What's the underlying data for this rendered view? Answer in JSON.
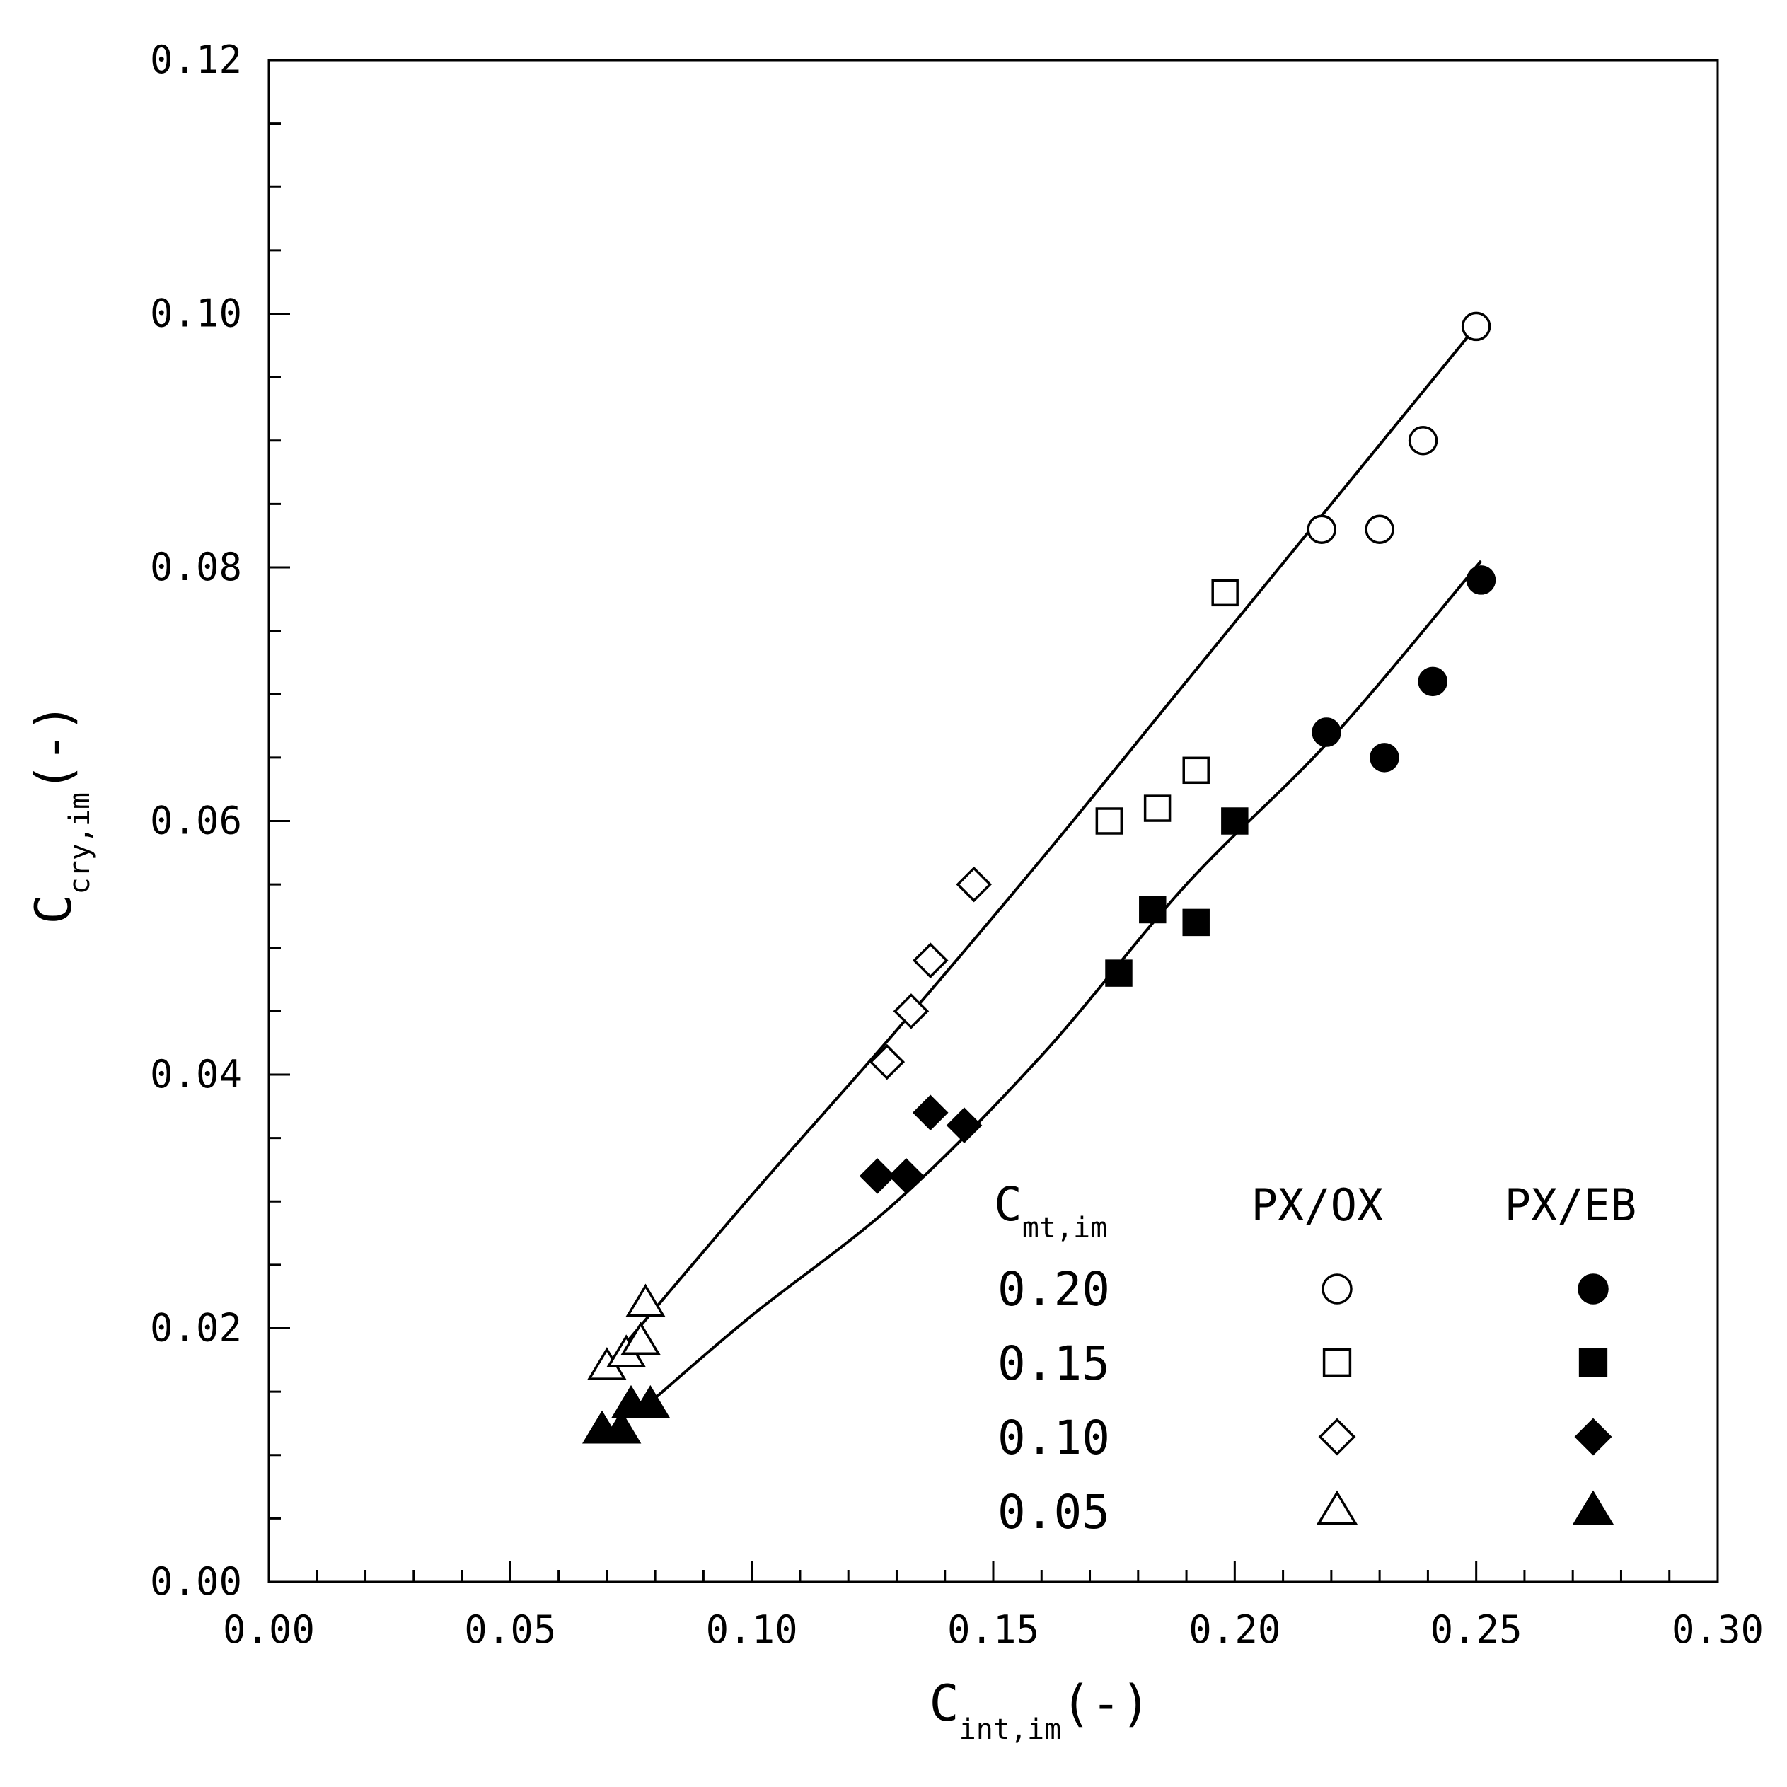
{
  "chart_data": {
    "type": "scatter",
    "xlabel": {
      "main": "C",
      "sub": "int,im",
      "suffix": "(-)"
    },
    "ylabel": {
      "main": "C",
      "sub": "cry,im",
      "suffix": "(-)"
    },
    "xlim": [
      0.0,
      0.3
    ],
    "ylim": [
      0.0,
      0.12
    ],
    "x_ticks": [
      "0.00",
      "0.05",
      "0.10",
      "0.15",
      "0.20",
      "0.25",
      "0.30"
    ],
    "y_ticks": [
      "0.00",
      "0.02",
      "0.04",
      "0.06",
      "0.08",
      "0.10",
      "0.12"
    ],
    "grid": false,
    "legend": {
      "placement": "bottom-right",
      "header": {
        "main": "C",
        "sub": "mt,im",
        "col1": "PX/OX",
        "col2": "PX/EB"
      },
      "rows": [
        {
          "label": "0.20",
          "marker": "circle"
        },
        {
          "label": "0.15",
          "marker": "square"
        },
        {
          "label": "0.10",
          "marker": "diamond"
        },
        {
          "label": "0.05",
          "marker": "triangle"
        }
      ]
    },
    "series": [
      {
        "name": "PX/OX 0.20",
        "system": "PX/OX",
        "cmt": "0.20",
        "marker": "circle",
        "filled": false,
        "points": [
          [
            0.218,
            0.083
          ],
          [
            0.23,
            0.083
          ],
          [
            0.239,
            0.09
          ],
          [
            0.25,
            0.099
          ]
        ]
      },
      {
        "name": "PX/OX 0.15",
        "system": "PX/OX",
        "cmt": "0.15",
        "marker": "square",
        "filled": false,
        "points": [
          [
            0.174,
            0.06
          ],
          [
            0.184,
            0.061
          ],
          [
            0.192,
            0.064
          ],
          [
            0.198,
            0.078
          ]
        ]
      },
      {
        "name": "PX/OX 0.10",
        "system": "PX/OX",
        "cmt": "0.10",
        "marker": "diamond",
        "filled": false,
        "points": [
          [
            0.128,
            0.041
          ],
          [
            0.133,
            0.045
          ],
          [
            0.137,
            0.049
          ],
          [
            0.146,
            0.055
          ]
        ]
      },
      {
        "name": "PX/OX 0.05",
        "system": "PX/OX",
        "cmt": "0.05",
        "marker": "triangle",
        "filled": false,
        "points": [
          [
            0.07,
            0.017
          ],
          [
            0.074,
            0.018
          ],
          [
            0.077,
            0.019
          ],
          [
            0.078,
            0.022
          ]
        ]
      },
      {
        "name": "PX/EB 0.20",
        "system": "PX/EB",
        "cmt": "0.20",
        "marker": "circle",
        "filled": true,
        "points": [
          [
            0.219,
            0.067
          ],
          [
            0.231,
            0.065
          ],
          [
            0.241,
            0.071
          ],
          [
            0.251,
            0.079
          ]
        ]
      },
      {
        "name": "PX/EB 0.15",
        "system": "PX/EB",
        "cmt": "0.15",
        "marker": "square",
        "filled": true,
        "points": [
          [
            0.176,
            0.048
          ],
          [
            0.183,
            0.053
          ],
          [
            0.192,
            0.052
          ],
          [
            0.2,
            0.06
          ]
        ]
      },
      {
        "name": "PX/EB 0.10",
        "system": "PX/EB",
        "cmt": "0.10",
        "marker": "diamond",
        "filled": true,
        "points": [
          [
            0.126,
            0.032
          ],
          [
            0.132,
            0.032
          ],
          [
            0.137,
            0.037
          ],
          [
            0.144,
            0.036
          ]
        ]
      },
      {
        "name": "PX/EB 0.05",
        "system": "PX/EB",
        "cmt": "0.05",
        "marker": "triangle",
        "filled": true,
        "points": [
          [
            0.069,
            0.012
          ],
          [
            0.073,
            0.012
          ],
          [
            0.075,
            0.014
          ],
          [
            0.079,
            0.014
          ]
        ]
      }
    ],
    "fit_lines": [
      {
        "name": "PX/OX fit",
        "points": [
          [
            0.071,
            0.0175
          ],
          [
            0.1,
            0.0305
          ],
          [
            0.13,
            0.0435
          ],
          [
            0.16,
            0.057
          ],
          [
            0.19,
            0.071
          ],
          [
            0.22,
            0.085
          ],
          [
            0.25,
            0.099
          ]
        ]
      },
      {
        "name": "PX/EB fit",
        "points": [
          [
            0.08,
            0.0145
          ],
          [
            0.1,
            0.021
          ],
          [
            0.13,
            0.03
          ],
          [
            0.16,
            0.0415
          ],
          [
            0.19,
            0.055
          ],
          [
            0.22,
            0.0665
          ],
          [
            0.251,
            0.0805
          ]
        ]
      }
    ]
  }
}
